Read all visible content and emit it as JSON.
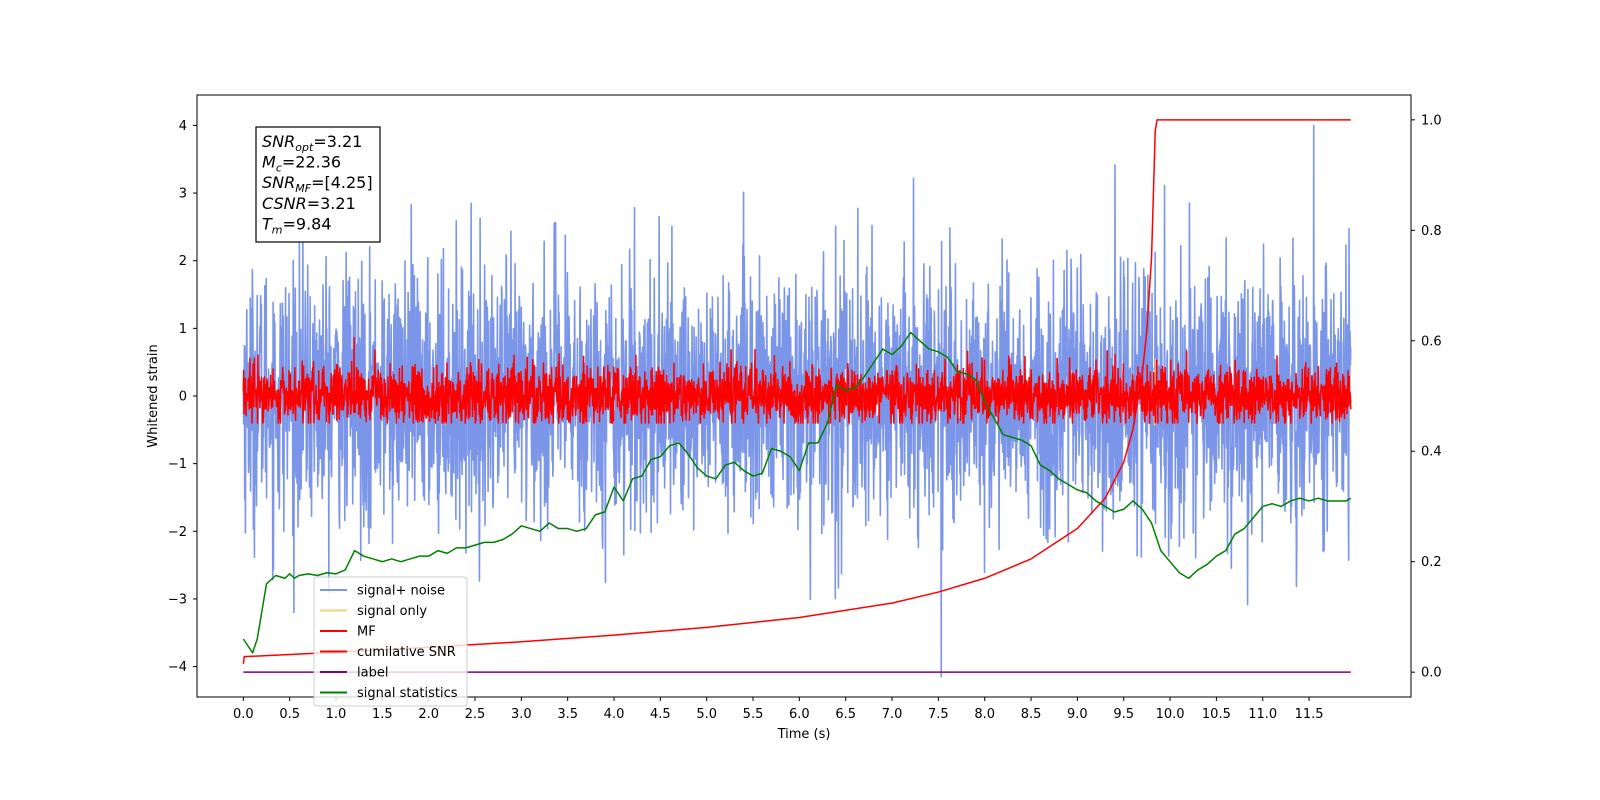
{
  "chart_data": {
    "type": "line",
    "xlabel": "Time (s)",
    "ylabel": "Whitened strain",
    "ylabel_right": "",
    "xlim": [
      -0.5,
      12.6
    ],
    "ylim_left": [
      -4.45,
      4.45
    ],
    "ylim_right": [
      -0.045,
      1.045
    ],
    "x_ticks": [
      0.0,
      0.5,
      1.0,
      1.5,
      2.0,
      2.5,
      3.0,
      3.5,
      4.0,
      4.5,
      5.0,
      5.5,
      6.0,
      6.5,
      7.0,
      7.5,
      8.0,
      8.5,
      9.0,
      9.5,
      10.0,
      10.5,
      11.0,
      11.5
    ],
    "x_tick_labels": [
      "0.0",
      "0.5",
      "1.0",
      "1.5",
      "2.0",
      "2.5",
      "3.0",
      "3.5",
      "4.0",
      "4.5",
      "5.0",
      "5.5",
      "6.0",
      "6.5",
      "7.0",
      "7.5",
      "8.0",
      "8.5",
      "9.0",
      "9.5",
      "10.0",
      "10.5",
      "11.0",
      "11.5"
    ],
    "y_ticks_left": [
      -4,
      -3,
      -2,
      -1,
      0,
      1,
      2,
      3,
      4
    ],
    "y_tick_labels_left": [
      "−4",
      "−3",
      "−2",
      "−1",
      "0",
      "1",
      "2",
      "3",
      "4"
    ],
    "y_ticks_right": [
      0.0,
      0.2,
      0.4,
      0.6,
      0.8,
      1.0
    ],
    "y_tick_labels_right": [
      "0.0",
      "0.2",
      "0.4",
      "0.6",
      "0.8",
      "1.0"
    ],
    "legend_position": "lower-left",
    "grid": false,
    "annotation": {
      "lines": [
        {
          "base": "SNR",
          "sub": "opt",
          "rest": "=3.21"
        },
        {
          "base": "M",
          "sub": "c",
          "rest": "=22.36"
        },
        {
          "base": "SNR",
          "sub": "MF",
          "rest": "=[4.25]"
        },
        {
          "base": "CSNR",
          "sub": "",
          "rest": "=3.21"
        },
        {
          "base": "T",
          "sub": "m",
          "rest": "=9.84"
        }
      ]
    },
    "series": [
      {
        "name": "signal+ noise",
        "axis": "left",
        "color": "#7b96e8",
        "kind": "noise",
        "x_range": [
          0.0,
          11.95
        ],
        "mean": 0.0,
        "std": 0.95,
        "range": [
          -3.2,
          3.6
        ],
        "spikes": [
          {
            "x": 7.53,
            "y": -4.15
          },
          {
            "x": 11.55,
            "y": 4.0
          }
        ]
      },
      {
        "name": "signal only",
        "axis": "left",
        "color": "#f5cf7a",
        "kind": "burst",
        "x_range": [
          9.82,
          9.86
        ],
        "range": [
          -0.6,
          0.6
        ]
      },
      {
        "name": "MF",
        "axis": "left",
        "color": "#ff0000",
        "kind": "noise",
        "x_range": [
          0.0,
          11.95
        ],
        "mean": 0.0,
        "std": 0.22,
        "range": [
          -0.4,
          1.0
        ]
      },
      {
        "name": "cumilative SNR",
        "axis": "right",
        "color": "#ff0000",
        "kind": "line",
        "x": [
          0.0,
          0.01,
          0.5,
          1.0,
          2.0,
          3.0,
          4.0,
          5.0,
          6.0,
          7.0,
          7.5,
          8.0,
          8.5,
          9.0,
          9.3,
          9.5,
          9.6,
          9.7,
          9.75,
          9.8,
          9.84,
          9.86,
          11.95
        ],
        "values": [
          0.015,
          0.028,
          0.032,
          0.036,
          0.045,
          0.055,
          0.067,
          0.081,
          0.099,
          0.125,
          0.145,
          0.17,
          0.205,
          0.26,
          0.315,
          0.38,
          0.44,
          0.54,
          0.62,
          0.75,
          0.98,
          1.0,
          1.0
        ]
      },
      {
        "name": "label",
        "axis": "right",
        "color": "#800080",
        "kind": "line",
        "x": [
          0.0,
          11.95
        ],
        "values": [
          0.0,
          0.0
        ]
      },
      {
        "name": "signal statistics",
        "axis": "right",
        "color": "#008000",
        "kind": "line",
        "x": [
          0.0,
          0.1,
          0.15,
          0.25,
          0.35,
          0.45,
          0.5,
          0.55,
          0.6,
          0.7,
          0.8,
          0.9,
          1.0,
          1.1,
          1.2,
          1.3,
          1.4,
          1.5,
          1.6,
          1.7,
          1.8,
          1.9,
          2.0,
          2.1,
          2.2,
          2.3,
          2.4,
          2.5,
          2.6,
          2.7,
          2.8,
          2.9,
          3.0,
          3.1,
          3.2,
          3.3,
          3.4,
          3.5,
          3.6,
          3.7,
          3.8,
          3.9,
          4.0,
          4.1,
          4.2,
          4.3,
          4.4,
          4.5,
          4.6,
          4.7,
          4.8,
          4.9,
          5.0,
          5.1,
          5.2,
          5.3,
          5.4,
          5.5,
          5.6,
          5.7,
          5.8,
          5.9,
          6.0,
          6.1,
          6.2,
          6.3,
          6.4,
          6.5,
          6.6,
          6.7,
          6.8,
          6.9,
          7.0,
          7.1,
          7.2,
          7.3,
          7.4,
          7.5,
          7.6,
          7.7,
          7.8,
          7.9,
          8.0,
          8.1,
          8.2,
          8.3,
          8.4,
          8.5,
          8.6,
          8.7,
          8.8,
          8.9,
          9.0,
          9.1,
          9.2,
          9.3,
          9.4,
          9.5,
          9.6,
          9.7,
          9.8,
          9.9,
          10.0,
          10.1,
          10.2,
          10.3,
          10.4,
          10.5,
          10.6,
          10.7,
          10.8,
          10.9,
          11.0,
          11.1,
          11.2,
          11.3,
          11.4,
          11.5,
          11.6,
          11.7,
          11.8,
          11.9,
          11.95
        ],
        "values": [
          0.06,
          0.035,
          0.06,
          0.16,
          0.175,
          0.17,
          0.178,
          0.17,
          0.175,
          0.178,
          0.175,
          0.18,
          0.178,
          0.185,
          0.22,
          0.21,
          0.205,
          0.2,
          0.205,
          0.2,
          0.205,
          0.21,
          0.21,
          0.22,
          0.215,
          0.225,
          0.225,
          0.23,
          0.235,
          0.235,
          0.24,
          0.25,
          0.265,
          0.26,
          0.255,
          0.27,
          0.26,
          0.26,
          0.255,
          0.26,
          0.285,
          0.29,
          0.335,
          0.31,
          0.35,
          0.355,
          0.385,
          0.39,
          0.41,
          0.415,
          0.395,
          0.37,
          0.355,
          0.35,
          0.375,
          0.38,
          0.365,
          0.355,
          0.36,
          0.405,
          0.4,
          0.39,
          0.365,
          0.415,
          0.415,
          0.45,
          0.52,
          0.51,
          0.515,
          0.535,
          0.56,
          0.585,
          0.575,
          0.59,
          0.615,
          0.6,
          0.585,
          0.58,
          0.57,
          0.545,
          0.54,
          0.53,
          0.49,
          0.46,
          0.43,
          0.425,
          0.42,
          0.41,
          0.375,
          0.365,
          0.35,
          0.34,
          0.33,
          0.325,
          0.31,
          0.3,
          0.29,
          0.295,
          0.31,
          0.295,
          0.27,
          0.22,
          0.2,
          0.18,
          0.17,
          0.185,
          0.195,
          0.21,
          0.22,
          0.25,
          0.26,
          0.28,
          0.3,
          0.305,
          0.3,
          0.31,
          0.315,
          0.31,
          0.315,
          0.31,
          0.31,
          0.31,
          0.315
        ]
      }
    ]
  }
}
